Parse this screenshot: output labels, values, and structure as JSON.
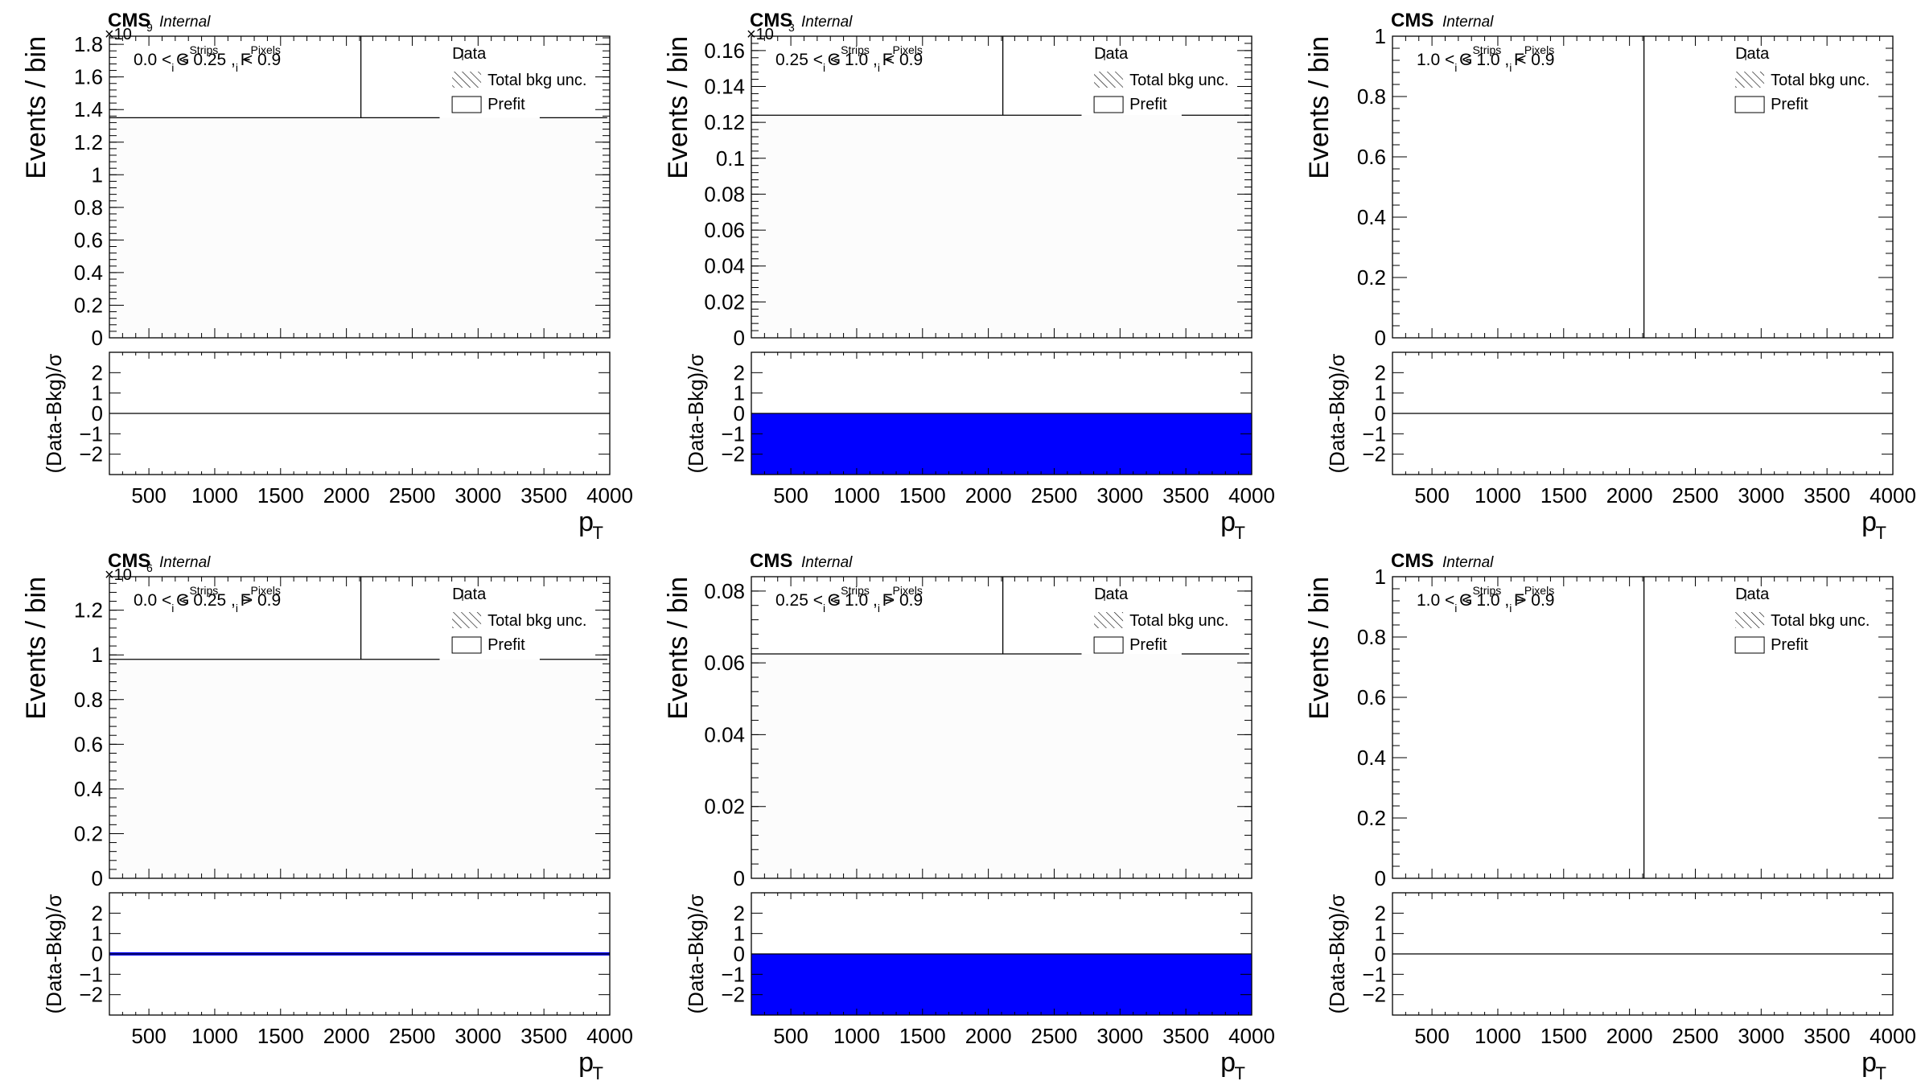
{
  "chart_data": [
    {
      "type": "histogram",
      "cms_label": "CMS",
      "cms_extra": "Internal",
      "exponent_label": "×10",
      "exponent_power": "9",
      "region_label": {
        "a": "0.0 < G",
        "a_sup": "Strips",
        "a_sub": "i",
        "b": " < 0.25 , F",
        "b_sup": "Pixels",
        "b_sub": "i",
        "c": " < 0.9"
      },
      "ylabel": "Events / bin",
      "ratio_ylabel": "(Data-Bkg)/σ",
      "xlabel": "p",
      "xlabel_sub": "T",
      "xlim": [
        200,
        4000
      ],
      "xticks": [
        "500",
        "1000",
        "1500",
        "2000",
        "2500",
        "3000",
        "3500",
        "4000"
      ],
      "ylim": [
        0,
        1.85
      ],
      "yticks": [
        "0",
        "0.2",
        "0.4",
        "0.6",
        "0.8",
        "1",
        "1.2",
        "1.4",
        "1.6",
        "1.8"
      ],
      "ratio_ylim": [
        -3,
        3
      ],
      "ratio_yticks": [
        "−2",
        "−1",
        "0",
        "1",
        "2"
      ],
      "legend": {
        "data": "Data",
        "unc": "Total bkg unc.",
        "prefit": "Prefit",
        "placement": "top-right"
      },
      "prefit_level": 1.35,
      "data_vline_x": 2110,
      "ratio_fill": "none"
    },
    {
      "type": "histogram",
      "cms_label": "CMS",
      "cms_extra": "Internal",
      "exponent_label": "×10",
      "exponent_power": "3",
      "region_label": {
        "a": "0.25 < G",
        "a_sup": "Strips",
        "a_sub": "i",
        "b": " < 1.0 , F",
        "b_sup": "Pixels",
        "b_sub": "i",
        "c": " < 0.9"
      },
      "ylabel": "Events / bin",
      "ratio_ylabel": "(Data-Bkg)/σ",
      "xlabel": "p",
      "xlabel_sub": "T",
      "xlim": [
        200,
        4000
      ],
      "xticks": [
        "500",
        "1000",
        "1500",
        "2000",
        "2500",
        "3000",
        "3500",
        "4000"
      ],
      "ylim": [
        0,
        0.168
      ],
      "yticks": [
        "0",
        "0.02",
        "0.04",
        "0.06",
        "0.08",
        "0.1",
        "0.12",
        "0.14",
        "0.16"
      ],
      "ratio_ylim": [
        -3,
        3
      ],
      "ratio_yticks": [
        "−2",
        "−1",
        "0",
        "1",
        "2"
      ],
      "legend": {
        "data": "Data",
        "unc": "Total bkg unc.",
        "prefit": "Prefit",
        "placement": "top-right"
      },
      "prefit_level": 0.124,
      "data_vline_x": 2110,
      "ratio_fill": "negative",
      "ratio_fill_color": "#0000ff"
    },
    {
      "type": "histogram",
      "cms_label": "CMS",
      "cms_extra": "Internal",
      "exponent_label": "",
      "exponent_power": "",
      "region_label": {
        "a": "1.0 < G",
        "a_sup": "Strips",
        "a_sub": "i",
        "b": " < 1.0 , F",
        "b_sup": "Pixels",
        "b_sub": "i",
        "c": " < 0.9"
      },
      "ylabel": "Events / bin",
      "ratio_ylabel": "(Data-Bkg)/σ",
      "xlabel": "p",
      "xlabel_sub": "T",
      "xlim": [
        200,
        4000
      ],
      "xticks": [
        "500",
        "1000",
        "1500",
        "2000",
        "2500",
        "3000",
        "3500",
        "4000"
      ],
      "ylim": [
        0,
        1
      ],
      "yticks": [
        "0",
        "0.2",
        "0.4",
        "0.6",
        "0.8",
        "1"
      ],
      "ratio_ylim": [
        -3,
        3
      ],
      "ratio_yticks": [
        "−2",
        "−1",
        "0",
        "1",
        "2"
      ],
      "legend": {
        "data": "Data",
        "unc": "Total bkg unc.",
        "prefit": "Prefit",
        "placement": "top-right"
      },
      "prefit_level": null,
      "data_vline_x": 2110,
      "data_vline_full": true,
      "ratio_fill": "none"
    },
    {
      "type": "histogram",
      "cms_label": "CMS",
      "cms_extra": "Internal",
      "exponent_label": "×10",
      "exponent_power": "6",
      "region_label": {
        "a": "0.0 < G",
        "a_sup": "Strips",
        "a_sub": "i",
        "b": " < 0.25 , F",
        "b_sup": "Pixels",
        "b_sub": "i",
        "c": " > 0.9"
      },
      "ylabel": "Events / bin",
      "ratio_ylabel": "(Data-Bkg)/σ",
      "xlabel": "p",
      "xlabel_sub": "T",
      "xlim": [
        200,
        4000
      ],
      "xticks": [
        "500",
        "1000",
        "1500",
        "2000",
        "2500",
        "3000",
        "3500",
        "4000"
      ],
      "ylim": [
        0,
        1.35
      ],
      "yticks": [
        "0",
        "0.2",
        "0.4",
        "0.6",
        "0.8",
        "1",
        "1.2"
      ],
      "ratio_ylim": [
        -3,
        3
      ],
      "ratio_yticks": [
        "−2",
        "−1",
        "0",
        "1",
        "2"
      ],
      "legend": {
        "data": "Data",
        "unc": "Total bkg unc.",
        "prefit": "Prefit",
        "placement": "top-right"
      },
      "prefit_level": 0.98,
      "data_vline_x": 2110,
      "ratio_fill": "thin",
      "ratio_fill_color": "#0000ff"
    },
    {
      "type": "histogram",
      "cms_label": "CMS",
      "cms_extra": "Internal",
      "exponent_label": "",
      "exponent_power": "",
      "region_label": {
        "a": "0.25 < G",
        "a_sup": "Strips",
        "a_sub": "i",
        "b": " < 1.0 , F",
        "b_sup": "Pixels",
        "b_sub": "i",
        "c": " > 0.9"
      },
      "ylabel": "Events / bin",
      "ratio_ylabel": "(Data-Bkg)/σ",
      "xlabel": "p",
      "xlabel_sub": "T",
      "xlim": [
        200,
        4000
      ],
      "xticks": [
        "500",
        "1000",
        "1500",
        "2000",
        "2500",
        "3000",
        "3500",
        "4000"
      ],
      "ylim": [
        0,
        0.084
      ],
      "yticks": [
        "0",
        "0.02",
        "0.04",
        "0.06",
        "0.08"
      ],
      "ratio_ylim": [
        -3,
        3
      ],
      "ratio_yticks": [
        "−2",
        "−1",
        "0",
        "1",
        "2"
      ],
      "legend": {
        "data": "Data",
        "unc": "Total bkg unc.",
        "prefit": "Prefit",
        "placement": "top-right"
      },
      "prefit_level": 0.0625,
      "data_vline_x": 2110,
      "ratio_fill": "negative",
      "ratio_fill_color": "#0000ff"
    },
    {
      "type": "histogram",
      "cms_label": "CMS",
      "cms_extra": "Internal",
      "exponent_label": "",
      "exponent_power": "",
      "region_label": {
        "a": "1.0 < G",
        "a_sup": "Strips",
        "a_sub": "i",
        "b": " < 1.0 , F",
        "b_sup": "Pixels",
        "b_sub": "i",
        "c": " > 0.9"
      },
      "ylabel": "Events / bin",
      "ratio_ylabel": "(Data-Bkg)/σ",
      "xlabel": "p",
      "xlabel_sub": "T",
      "xlim": [
        200,
        4000
      ],
      "xticks": [
        "500",
        "1000",
        "1500",
        "2000",
        "2500",
        "3000",
        "3500",
        "4000"
      ],
      "ylim": [
        0,
        1
      ],
      "yticks": [
        "0",
        "0.2",
        "0.4",
        "0.6",
        "0.8",
        "1"
      ],
      "ratio_ylim": [
        -3,
        3
      ],
      "ratio_yticks": [
        "−2",
        "−1",
        "0",
        "1",
        "2"
      ],
      "legend": {
        "data": "Data",
        "unc": "Total bkg unc.",
        "prefit": "Prefit",
        "placement": "top-right"
      },
      "prefit_level": null,
      "data_vline_x": 2110,
      "data_vline_full": true,
      "ratio_fill": "none"
    }
  ]
}
